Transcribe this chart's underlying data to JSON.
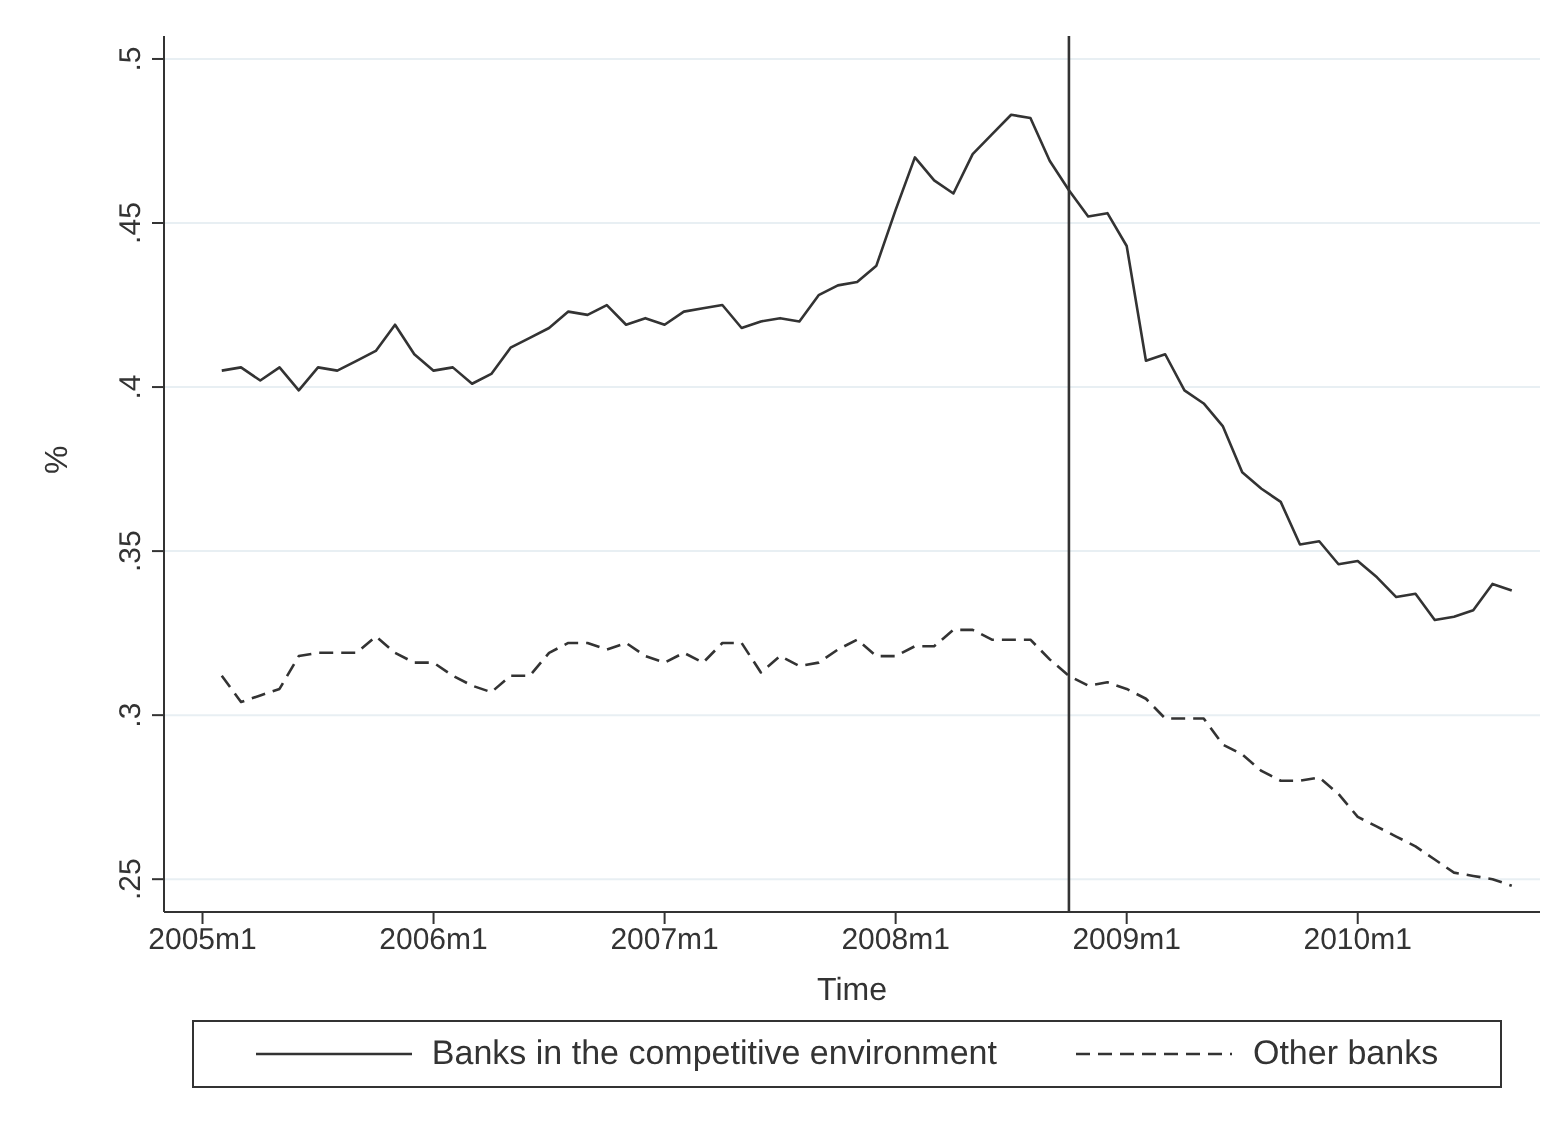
{
  "chart_data": {
    "type": "line",
    "xlabel": "Time",
    "ylabel": "%",
    "x": [
      "2005-02",
      "2005-03",
      "2005-04",
      "2005-05",
      "2005-06",
      "2005-07",
      "2005-08",
      "2005-09",
      "2005-10",
      "2005-11",
      "2005-12",
      "2006-01",
      "2006-02",
      "2006-03",
      "2006-04",
      "2006-05",
      "2006-06",
      "2006-07",
      "2006-08",
      "2006-09",
      "2006-10",
      "2006-11",
      "2006-12",
      "2007-01",
      "2007-02",
      "2007-03",
      "2007-04",
      "2007-05",
      "2007-06",
      "2007-07",
      "2007-08",
      "2007-09",
      "2007-10",
      "2007-11",
      "2007-12",
      "2008-01",
      "2008-02",
      "2008-03",
      "2008-04",
      "2008-05",
      "2008-06",
      "2008-07",
      "2008-08",
      "2008-09",
      "2008-10",
      "2008-11",
      "2008-12",
      "2009-01",
      "2009-02",
      "2009-03",
      "2009-04",
      "2009-05",
      "2009-06",
      "2009-07",
      "2009-08",
      "2009-09",
      "2009-10",
      "2009-11",
      "2009-12",
      "2010-01",
      "2010-02",
      "2010-03",
      "2010-04",
      "2010-05",
      "2010-06",
      "2010-07",
      "2010-08",
      "2010-09"
    ],
    "series": [
      {
        "name": "Banks in the competitive environment",
        "color": "#333333",
        "line_style": "solid",
        "values": [
          0.405,
          0.406,
          0.402,
          0.406,
          0.399,
          0.406,
          0.405,
          0.408,
          0.411,
          0.419,
          0.41,
          0.405,
          0.406,
          0.401,
          0.404,
          0.412,
          0.415,
          0.418,
          0.423,
          0.422,
          0.425,
          0.419,
          0.421,
          0.419,
          0.423,
          0.424,
          0.425,
          0.418,
          0.42,
          0.421,
          0.42,
          0.428,
          0.431,
          0.432,
          0.437,
          0.454,
          0.47,
          0.463,
          0.459,
          0.471,
          0.477,
          0.483,
          0.482,
          0.469,
          0.46,
          0.452,
          0.453,
          0.443,
          0.408,
          0.41,
          0.399,
          0.395,
          0.388,
          0.374,
          0.369,
          0.365,
          0.352,
          0.353,
          0.346,
          0.347,
          0.342,
          0.336,
          0.337,
          0.329,
          0.33,
          0.332,
          0.34,
          0.338
        ]
      },
      {
        "name": "Other banks",
        "color": "#333333",
        "line_style": "dashed",
        "values": [
          0.312,
          0.304,
          0.306,
          0.308,
          0.318,
          0.319,
          0.319,
          0.319,
          0.324,
          0.319,
          0.316,
          0.316,
          0.312,
          0.309,
          0.307,
          0.312,
          0.312,
          0.319,
          0.322,
          0.322,
          0.32,
          0.322,
          0.318,
          0.316,
          0.319,
          0.316,
          0.322,
          0.322,
          0.313,
          0.318,
          0.315,
          0.316,
          0.32,
          0.323,
          0.318,
          0.318,
          0.321,
          0.321,
          0.326,
          0.326,
          0.323,
          0.323,
          0.323,
          0.317,
          0.312,
          0.309,
          0.31,
          0.308,
          0.305,
          0.299,
          0.299,
          0.299,
          0.291,
          0.288,
          0.283,
          0.28,
          0.28,
          0.281,
          0.276,
          0.269,
          0.266,
          0.263,
          0.26,
          0.256,
          0.252,
          0.251,
          0.25,
          0.248
        ]
      }
    ],
    "xlim": [
      "2004-11-01",
      "2010-10-15"
    ],
    "xticks": [
      {
        "value": "2005-01",
        "label": "2005m1"
      },
      {
        "value": "2006-01",
        "label": "2006m1"
      },
      {
        "value": "2007-01",
        "label": "2007m1"
      },
      {
        "value": "2008-01",
        "label": "2008m1"
      },
      {
        "value": "2009-01",
        "label": "2009m1"
      },
      {
        "value": "2010-01",
        "label": "2010m1"
      }
    ],
    "ylim": [
      0.24,
      0.507
    ],
    "yticks": [
      {
        "value": 0.25,
        "label": ".25"
      },
      {
        "value": 0.3,
        "label": ".3"
      },
      {
        "value": 0.35,
        "label": ".35"
      },
      {
        "value": 0.4,
        "label": ".4"
      },
      {
        "value": 0.45,
        "label": ".45"
      },
      {
        "value": 0.5,
        "label": ".5"
      }
    ],
    "ref_lines": [
      {
        "axis": "x",
        "value": "2008-10",
        "color": "#333333"
      }
    ],
    "grid": "y",
    "legend": "bottom",
    "marker": "none"
  }
}
